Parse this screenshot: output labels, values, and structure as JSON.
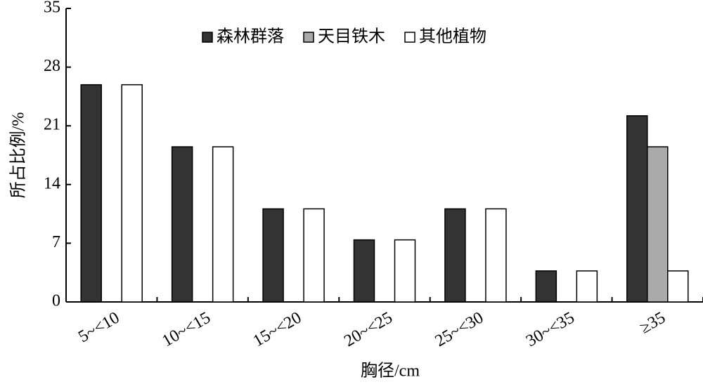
{
  "chart_data": {
    "type": "bar",
    "x_label": "胸径/cm",
    "y_label": "所占比例/%",
    "categories": [
      "5~<10",
      "10~<15",
      "15~<20",
      "20~<25",
      "25~<30",
      "30~<35",
      "≥35"
    ],
    "series": [
      {
        "name": "森林群落",
        "color": "#333333",
        "values": [
          25.9,
          18.5,
          11.1,
          7.4,
          11.1,
          3.7,
          22.2
        ]
      },
      {
        "name": "天目铁木",
        "color": "#aaaaaa",
        "values": [
          0,
          0,
          0,
          0,
          0,
          0,
          18.5
        ]
      },
      {
        "name": "其他植物",
        "color": "#ffffff",
        "values": [
          25.9,
          18.5,
          11.1,
          7.4,
          11.1,
          3.7,
          3.7
        ]
      }
    ],
    "ylim": [
      0,
      35
    ],
    "yticks": [
      0,
      7,
      14,
      21,
      28,
      35
    ],
    "legend": "top"
  }
}
